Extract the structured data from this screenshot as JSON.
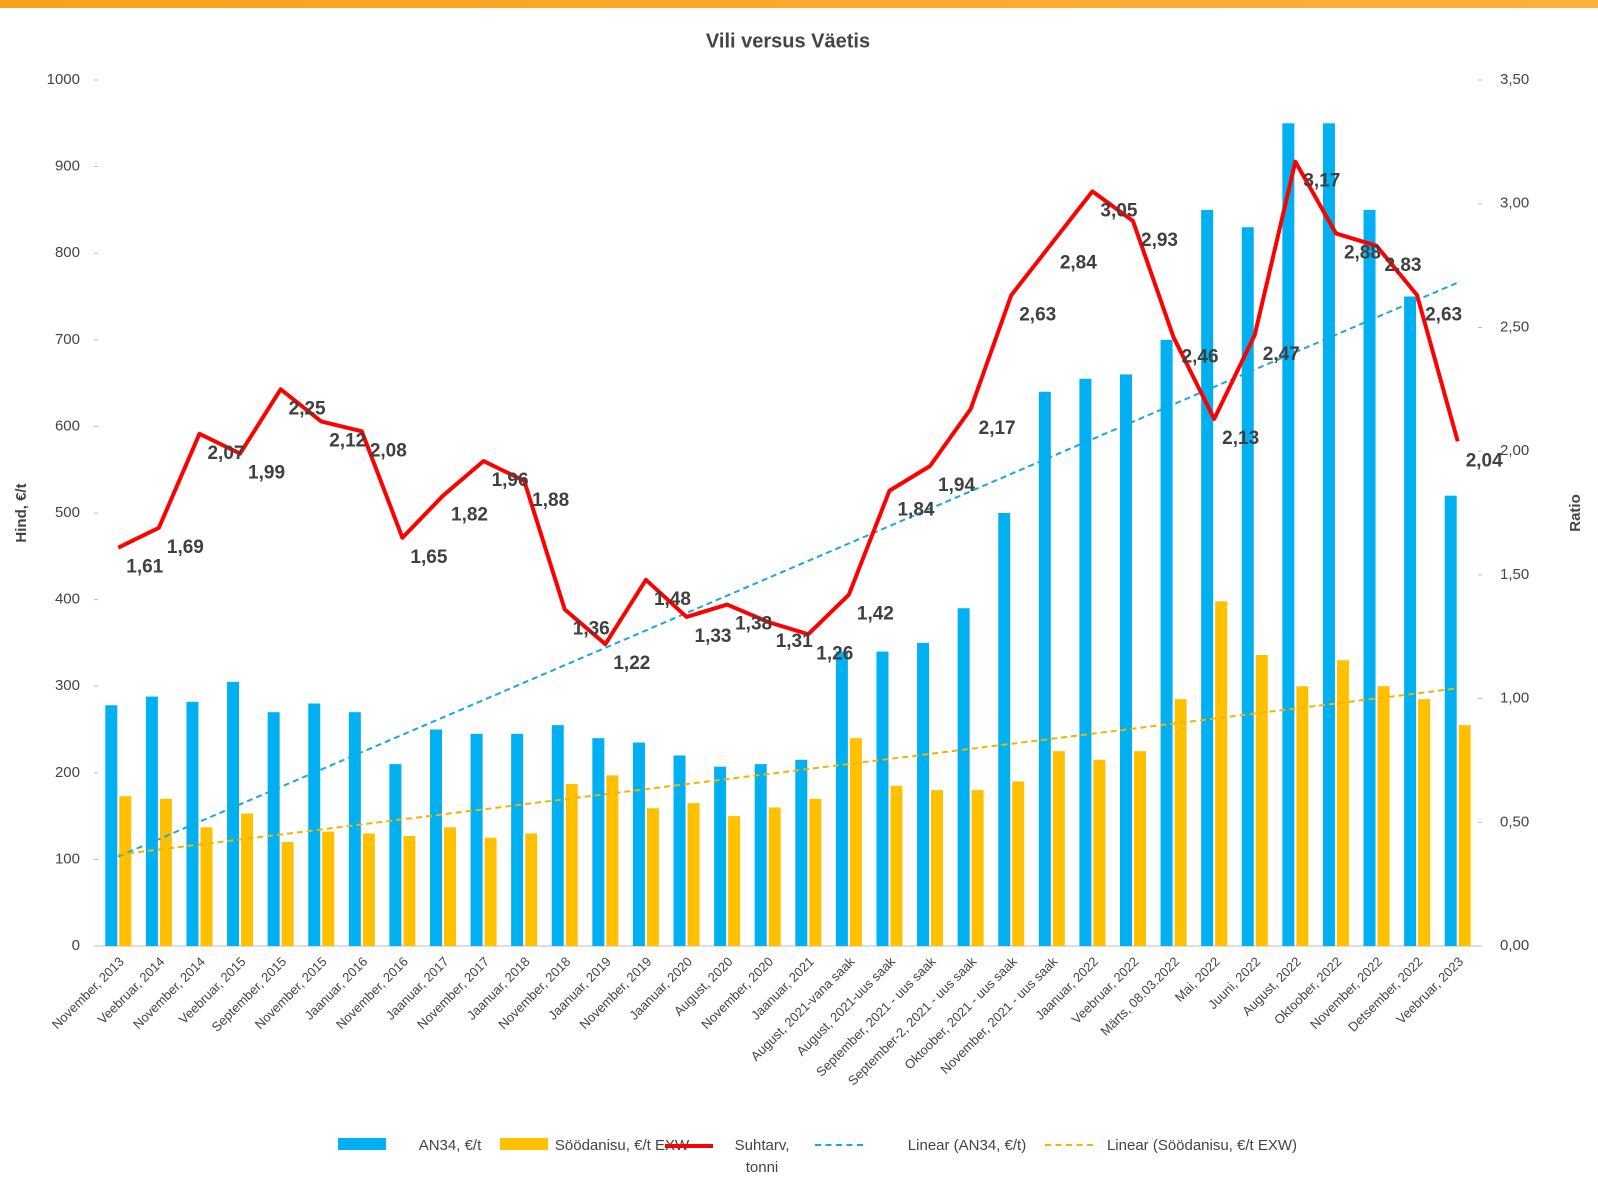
{
  "chart_data": {
    "type": "bar",
    "title": "Vili versus Väetis",
    "y_label": "Hind, €/t",
    "y2_label": "Ratio",
    "categories": [
      "November, 2013",
      "Veebruar, 2014",
      "November, 2014",
      "Veebruar, 2015",
      "September, 2015",
      "November, 2015",
      "Jaanuar, 2016",
      "November, 2016",
      "Jaanuar, 2017",
      "November, 2017",
      "Jaanuar, 2018",
      "November, 2018",
      "Jaanuar, 2019",
      "November, 2019",
      "Jaanuar, 2020",
      "August, 2020",
      "November, 2020",
      "Jaanuar, 2021",
      "August, 2021-vana saak",
      "August, 2021-uus saak",
      "September, 2021 - uus saak",
      "September-2, 2021 - uus saak",
      "Oktoober, 2021 - uus saak",
      "November, 2021 - uus saak",
      "Jaanuar, 2022",
      "Veebruar, 2022",
      "Märts, 08.03.2022",
      "Mai, 2022",
      "Juuni, 2022",
      "August, 2022",
      "Oktoober, 2022",
      "November, 2022",
      "Detsember, 2022",
      "Veebruar, 2023"
    ],
    "series": [
      {
        "name": "AN34, €/t",
        "type": "bar",
        "color": "#00b0f0",
        "values": [
          278,
          288,
          282,
          305,
          270,
          280,
          270,
          210,
          250,
          245,
          245,
          255,
          240,
          235,
          220,
          207,
          210,
          215,
          340,
          340,
          350,
          390,
          500,
          640,
          655,
          660,
          700,
          850,
          830,
          950,
          950,
          850,
          750,
          520
        ]
      },
      {
        "name": "Söödanisu, €/t EXW",
        "type": "bar",
        "color": "#ffc000",
        "values": [
          173,
          170,
          137,
          153,
          120,
          132,
          130,
          127,
          137,
          125,
          130,
          187,
          197,
          159,
          165,
          150,
          160,
          170,
          240,
          185,
          180,
          180,
          190,
          225,
          215,
          225,
          285,
          398,
          336,
          300,
          330,
          300,
          285,
          255
        ]
      },
      {
        "name": "Suhtarv, tonni",
        "type": "line",
        "axis": "y2",
        "color": "#ff0000",
        "values": [
          1.61,
          1.69,
          2.07,
          1.99,
          2.25,
          2.12,
          2.08,
          1.65,
          1.82,
          1.96,
          1.88,
          1.36,
          1.22,
          1.48,
          1.33,
          1.38,
          1.31,
          1.26,
          1.42,
          1.84,
          1.94,
          2.17,
          2.63,
          2.84,
          3.05,
          2.93,
          2.46,
          2.13,
          2.47,
          3.17,
          2.88,
          2.83,
          2.63,
          2.04
        ],
        "value_labels": [
          "1,61",
          "1,69",
          "2,07",
          "1,99",
          "2,25",
          "2,12",
          "2,08",
          "1,65",
          "1,82",
          "1,96",
          "1,88",
          "1,36",
          "1,22",
          "1,48",
          "1,33",
          "1,38",
          "1,31",
          "1,26",
          "1,42",
          "1,84",
          "1,94",
          "2,17",
          "2,63",
          "2,84",
          "3,05",
          "2,93",
          "2,46",
          "2,13",
          "2,47",
          "3,17",
          "2,88",
          "2,83",
          "2,63",
          "2,04"
        ]
      }
    ],
    "trendlines": [
      {
        "name": "Linear (AN34, €/t)",
        "series": 0,
        "color": "#1aa7e0"
      },
      {
        "name": "Linear (Söödanisu, €/t EXW)",
        "series": 1,
        "color": "#f2b400"
      }
    ],
    "ylim": [
      0,
      1000
    ],
    "yticks": [
      0,
      100,
      200,
      300,
      400,
      500,
      600,
      700,
      800,
      900,
      1000
    ],
    "y2lim": [
      0,
      3.5
    ],
    "y2ticks": [
      {
        "value": 0,
        "label": "0,00"
      },
      {
        "value": 0.5,
        "label": "0,50"
      },
      {
        "value": 1,
        "label": "1,00"
      },
      {
        "value": 1.5,
        "label": "1,50"
      },
      {
        "value": 2,
        "label": "2,00"
      },
      {
        "value": 2.5,
        "label": "2,50"
      },
      {
        "value": 3,
        "label": "3,00"
      },
      {
        "value": 3.5,
        "label": "3,50"
      }
    ],
    "legend": "bottom"
  }
}
